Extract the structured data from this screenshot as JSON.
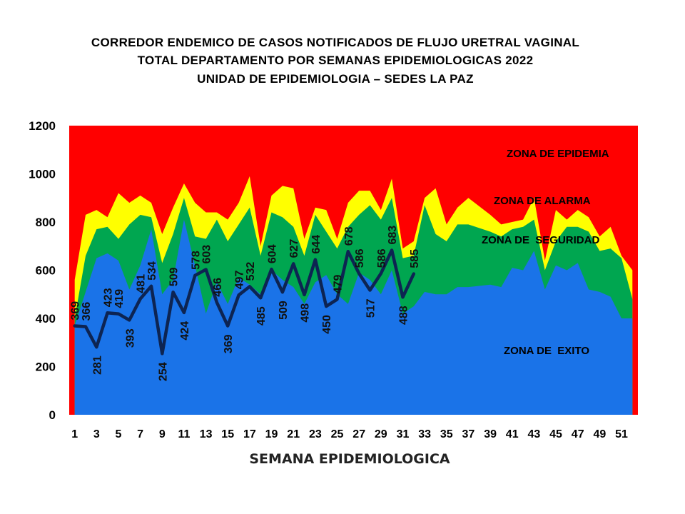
{
  "chart_data": {
    "type": "area",
    "title_lines": [
      "CORREDOR ENDEMICO  DE CASOS NOTIFICADOS  DE FLUJO URETRAL VAGINAL",
      "TOTAL DEPARTAMENTO  POR SEMANAS  EPIDEMIOLOGICAS  2022",
      "UNIDAD  DE EPIDEMIOLOGIA  – SEDES LA PAZ"
    ],
    "xlabel": "SEMANA EPIDEMIOLOGICA",
    "ylabel": "",
    "ylim": [
      0,
      1200
    ],
    "yticks": [
      0,
      200,
      400,
      600,
      800,
      1000,
      1200
    ],
    "xticks": [
      1,
      3,
      5,
      7,
      9,
      11,
      13,
      15,
      17,
      19,
      21,
      23,
      25,
      27,
      29,
      31,
      33,
      35,
      37,
      39,
      41,
      43,
      45,
      47,
      49,
      51
    ],
    "xlim": [
      0.5,
      52.5
    ],
    "zones": [
      {
        "name": "ZONA DE EPIDEMIA",
        "color": "#ff0000"
      },
      {
        "name": "ZONA DE ALARMA",
        "color": "#ffff00"
      },
      {
        "name": "ZONA DE  SEGURIDAD",
        "color": "#00a650"
      },
      {
        "name": "ZONA DE  EXITO",
        "color": "#1a73e8"
      }
    ],
    "weeks": [
      1,
      2,
      3,
      4,
      5,
      6,
      7,
      8,
      9,
      10,
      11,
      12,
      13,
      14,
      15,
      16,
      17,
      18,
      19,
      20,
      21,
      22,
      23,
      24,
      25,
      26,
      27,
      28,
      29,
      30,
      31,
      32,
      33,
      34,
      35,
      36,
      37,
      39,
      40,
      41,
      42,
      43,
      44,
      45,
      46,
      47,
      48,
      49,
      50,
      51,
      52
    ],
    "exito": [
      370,
      510,
      650,
      670,
      640,
      520,
      620,
      770,
      500,
      560,
      810,
      620,
      420,
      550,
      460,
      570,
      540,
      500,
      600,
      560,
      530,
      460,
      550,
      580,
      500,
      460,
      590,
      560,
      500,
      600,
      420,
      450,
      510,
      500,
      500,
      530,
      530,
      540,
      530,
      610,
      600,
      680,
      520,
      620,
      600,
      630,
      520,
      510,
      490,
      400,
      400
    ],
    "seguridad": [
      400,
      660,
      770,
      780,
      730,
      790,
      830,
      820,
      630,
      750,
      900,
      740,
      730,
      810,
      720,
      790,
      860,
      660,
      840,
      820,
      780,
      660,
      830,
      760,
      690,
      780,
      830,
      870,
      810,
      900,
      650,
      660,
      870,
      750,
      720,
      790,
      790,
      760,
      740,
      770,
      780,
      810,
      600,
      720,
      780,
      780,
      760,
      680,
      690,
      650,
      480
    ],
    "alarma": [
      560,
      830,
      850,
      820,
      920,
      880,
      910,
      880,
      750,
      860,
      960,
      880,
      840,
      840,
      810,
      880,
      990,
      700,
      910,
      950,
      940,
      730,
      860,
      850,
      730,
      880,
      930,
      930,
      850,
      980,
      690,
      720,
      900,
      940,
      790,
      860,
      900,
      830,
      790,
      800,
      810,
      900,
      640,
      850,
      810,
      850,
      820,
      740,
      780,
      660,
      600
    ],
    "observed": {
      "weeks": [
        1,
        2,
        3,
        4,
        5,
        6,
        7,
        8,
        9,
        10,
        11,
        12,
        13,
        14,
        15,
        16,
        17,
        18,
        19,
        20,
        21,
        22,
        23,
        24,
        25,
        26,
        27,
        28,
        29,
        30,
        31,
        32
      ],
      "values": [
        369,
        366,
        281,
        423,
        419,
        393,
        481,
        534,
        254,
        509,
        424,
        578,
        603,
        466,
        369,
        497,
        532,
        485,
        604,
        509,
        627,
        498,
        644,
        450,
        479,
        678,
        586,
        517,
        586,
        683,
        488,
        585
      ],
      "labels": [
        "369",
        "366",
        "281",
        "423",
        "419",
        "393",
        "481",
        "534",
        "254",
        "509",
        "424",
        "578",
        "603",
        "466",
        "369",
        "497",
        "532",
        "485",
        "604",
        "509",
        "627",
        "498",
        "644",
        "450",
        "479",
        "678",
        "586",
        "517",
        "586",
        "683",
        "488",
        "585"
      ],
      "color": "#0d2452"
    },
    "grid": false,
    "legend": "inline zone labels"
  }
}
